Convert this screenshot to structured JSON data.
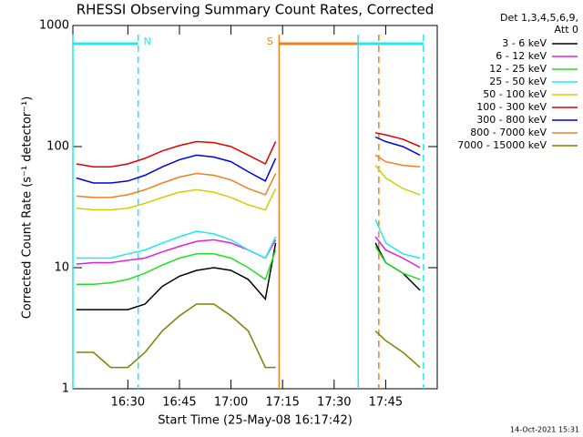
{
  "chart_data": {
    "type": "line",
    "title": "RHESSI Observing Summary Count Rates, Corrected",
    "x_label": "Start Time (25-May-08 16:17:42)",
    "y_label": "Corrected Count Rate (s⁻¹ detector⁻¹)",
    "legend_header": [
      "Det 1,3,4,5,6,9,",
      "Att 0"
    ],
    "footer": "14-Oct-2021 15:31",
    "log_y": true,
    "xlim": [
      "16:14",
      "18:00"
    ],
    "xticks": [
      "16:30",
      "16:45",
      "17:00",
      "17:15",
      "17:30",
      "17:45"
    ],
    "ylim": [
      1,
      1000
    ],
    "yticks": [
      1,
      10,
      100,
      1000
    ],
    "x": [
      "16:15",
      "16:20",
      "16:25",
      "16:30",
      "16:35",
      "16:40",
      "16:45",
      "16:50",
      "16:55",
      "17:00",
      "17:05",
      "17:10",
      "17:13",
      "17:28",
      "17:42",
      "17:45",
      "17:50",
      "17:55"
    ],
    "series": [
      {
        "name": "3 - 6 keV",
        "color": "#000000",
        "values": [
          4.5,
          4.5,
          4.5,
          4.5,
          5,
          7,
          8.5,
          9.5,
          10,
          9.5,
          8,
          5.5,
          16,
          null,
          16,
          11,
          9,
          6.5
        ]
      },
      {
        "name": "6 - 12 keV",
        "color": "#e020e0",
        "values": [
          10.7,
          11,
          11,
          11.5,
          12,
          13.5,
          15,
          16.5,
          17,
          16,
          14,
          12,
          17,
          null,
          18,
          14,
          12,
          10
        ]
      },
      {
        "name": "12 - 25 keV",
        "color": "#20e020",
        "values": [
          7.3,
          7.3,
          7.5,
          8,
          9,
          10.5,
          12,
          13,
          13,
          12,
          10,
          8,
          14,
          null,
          15,
          11,
          9,
          8
        ]
      },
      {
        "name": "25 - 50 keV",
        "color": "#20e8f0",
        "values": [
          12,
          12,
          12,
          13,
          14,
          16,
          18,
          20,
          19,
          17,
          14,
          12,
          18,
          null,
          25,
          16,
          13,
          12
        ]
      },
      {
        "name": "50 - 100 keV",
        "color": "#d0d000",
        "values": [
          31,
          30,
          30,
          31,
          34,
          38,
          42,
          44,
          42,
          38,
          33,
          30,
          45,
          null,
          70,
          55,
          45,
          40
        ]
      },
      {
        "name": "100 - 300 keV",
        "color": "#e00000",
        "values": [
          72,
          68,
          68,
          72,
          80,
          92,
          102,
          110,
          108,
          100,
          85,
          72,
          110,
          null,
          130,
          125,
          115,
          100
        ]
      },
      {
        "name": "300 - 800 keV",
        "color": "#0000e0",
        "values": [
          55,
          50,
          50,
          52,
          58,
          68,
          78,
          85,
          82,
          75,
          62,
          52,
          80,
          null,
          120,
          110,
          100,
          85
        ]
      },
      {
        "name": "800 - 7000 keV",
        "color": "#f08020",
        "values": [
          39,
          38,
          38,
          40,
          44,
          50,
          56,
          60,
          58,
          53,
          45,
          40,
          60,
          null,
          85,
          75,
          70,
          68
        ]
      },
      {
        "name": "7000 - 15000 keV",
        "color": "#808000",
        "values": [
          2,
          2,
          1.5,
          1.5,
          2,
          3,
          4,
          5,
          5,
          4,
          3,
          1.5,
          1.5,
          null,
          3,
          2.5,
          2,
          1.5
        ]
      }
    ],
    "intervals": [
      {
        "label": "N",
        "start": "16:14",
        "end": "16:33",
        "color": "#20e8f0"
      },
      {
        "label": "S",
        "start": "17:14",
        "end": "17:43",
        "color": "#f08020"
      },
      {
        "start": "17:37",
        "end": "17:56",
        "color": "#20e8f0"
      }
    ]
  }
}
